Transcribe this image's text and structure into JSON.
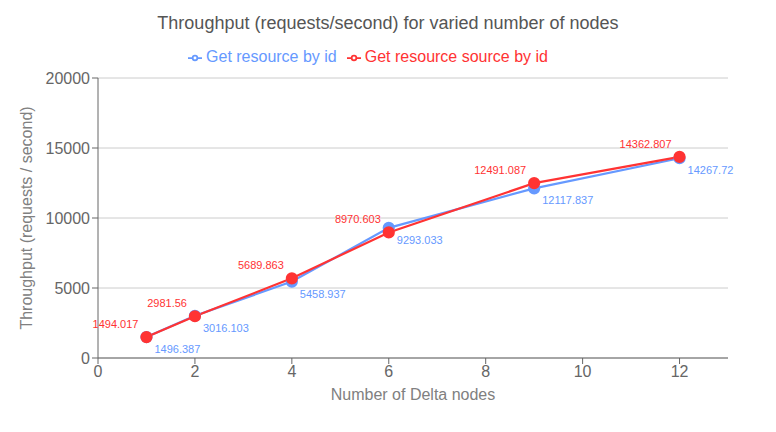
{
  "chart_data": {
    "type": "line",
    "title": "Throughput (requests/second) for varied number of nodes",
    "xlabel": "Number of Delta nodes",
    "ylabel": "Throughput (requests / second)",
    "x": [
      1,
      2,
      4,
      6,
      9,
      12
    ],
    "series": [
      {
        "name": "Get resource by id",
        "color": "#6699ff",
        "values": [
          1496.387,
          3016.103,
          5458.937,
          9293.033,
          12117.837,
          14267.72
        ]
      },
      {
        "name": "Get resource source by id",
        "color": "#ff3333",
        "values": [
          1494.017,
          2981.56,
          5689.863,
          8970.603,
          12491.087,
          14362.807
        ]
      }
    ],
    "xlim": [
      0,
      13
    ],
    "xticks": [
      0,
      2,
      4,
      6,
      8,
      10,
      12
    ],
    "ylim": [
      0,
      20000
    ],
    "yticks": [
      0,
      5000,
      10000,
      15000,
      20000
    ],
    "grid": true,
    "legend": "top",
    "marker": "circle",
    "data_labels": true
  }
}
